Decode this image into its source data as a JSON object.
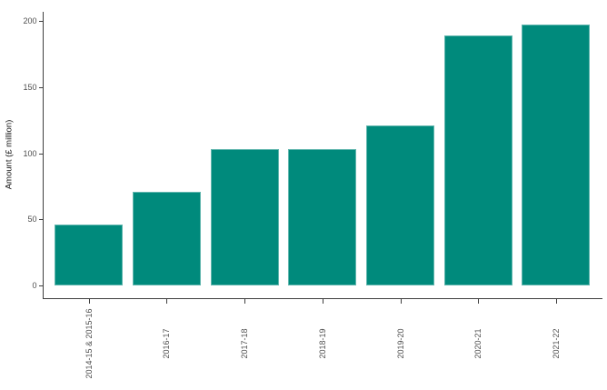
{
  "chart_data": {
    "type": "bar",
    "title": "",
    "categories": [
      "2014-15 & 2015-16",
      "2016-17",
      "2017-18",
      "2018-19",
      "2019-20",
      "2020-21",
      "2021-22"
    ],
    "values": [
      46,
      71,
      103,
      103,
      121,
      189,
      197
    ],
    "xlabel": "",
    "ylabel": "Amount (£ million)",
    "ylim": [
      0,
      200
    ],
    "yticks": [
      0,
      50,
      100,
      150,
      200
    ],
    "grid": false,
    "legend": "none",
    "colors": {
      "bar": "#008A7C",
      "axis": "#3F3F3F",
      "tick_label": "#4D4D4D",
      "axis_title": "#141414",
      "background": "#FFFFFF"
    }
  }
}
